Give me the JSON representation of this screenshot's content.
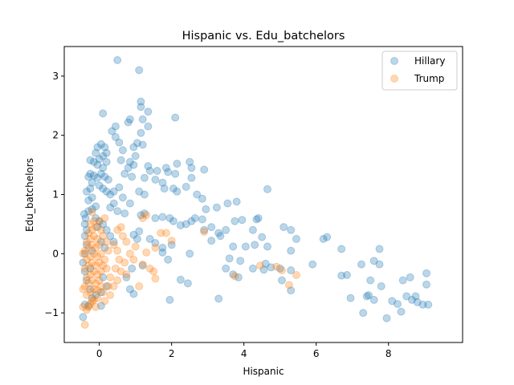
{
  "chart_data": {
    "type": "scatter",
    "title": "Hispanic vs. Edu_batchelors",
    "xlabel": "Hispanic",
    "ylabel": "Edu_batchelors",
    "xlim": [
      -0.97,
      10.05
    ],
    "ylim": [
      -1.5,
      3.5
    ],
    "xticks": [
      0,
      2,
      4,
      6,
      8
    ],
    "yticks": [
      -1,
      0,
      1,
      2,
      3
    ],
    "grid": false,
    "legend_position": "top-right",
    "series": [
      {
        "name": "Hillary",
        "color": "#1f77b4",
        "points": [
          [
            -0.45,
            -1.07
          ],
          [
            -0.4,
            -0.86
          ],
          [
            -0.3,
            -0.88
          ],
          [
            -0.2,
            -0.75
          ],
          [
            -0.1,
            -0.7
          ],
          [
            0.05,
            -0.88
          ],
          [
            -0.25,
            -0.6
          ],
          [
            -0.35,
            -0.45
          ],
          [
            -0.4,
            -0.3
          ],
          [
            -0.45,
            -0.15
          ],
          [
            -0.4,
            0.0
          ],
          [
            -0.35,
            0.15
          ],
          [
            -0.4,
            0.3
          ],
          [
            -0.35,
            0.4
          ],
          [
            -0.4,
            0.5
          ],
          [
            -0.38,
            0.6
          ],
          [
            -0.42,
            0.67
          ],
          [
            -0.3,
            0.72
          ],
          [
            -0.2,
            0.75
          ],
          [
            -0.1,
            0.8
          ],
          [
            -0.3,
            0.9
          ],
          [
            -0.2,
            0.95
          ],
          [
            -0.35,
            1.05
          ],
          [
            -0.25,
            1.1
          ],
          [
            -0.2,
            1.2
          ],
          [
            -0.3,
            1.3
          ],
          [
            -0.25,
            1.35
          ],
          [
            -0.15,
            1.32
          ],
          [
            -0.05,
            1.28
          ],
          [
            -0.25,
            1.58
          ],
          [
            -0.15,
            1.55
          ],
          [
            -0.1,
            1.7
          ],
          [
            -0.05,
            1.8
          ],
          [
            0.05,
            1.85
          ],
          [
            0.15,
            1.8
          ],
          [
            0.2,
            1.7
          ],
          [
            0.1,
            1.65
          ],
          [
            0.0,
            1.6
          ],
          [
            -0.05,
            1.5
          ],
          [
            0.1,
            1.45
          ],
          [
            0.2,
            1.55
          ],
          [
            0.05,
            1.35
          ],
          [
            0.15,
            1.3
          ],
          [
            0.25,
            1.25
          ],
          [
            0.0,
            1.15
          ],
          [
            0.1,
            1.1
          ],
          [
            0.2,
            1.05
          ],
          [
            0.3,
            1.0
          ],
          [
            -0.1,
            0.6
          ],
          [
            0.0,
            0.55
          ],
          [
            0.1,
            0.5
          ],
          [
            0.2,
            0.4
          ],
          [
            0.3,
            0.3
          ],
          [
            0.4,
            0.2
          ],
          [
            -0.05,
            0.45
          ],
          [
            0.05,
            0.2
          ],
          [
            0.15,
            0.1
          ],
          [
            -0.2,
            0.05
          ],
          [
            -0.25,
            -0.25
          ],
          [
            0.1,
            -0.4
          ],
          [
            0.2,
            -0.55
          ],
          [
            0.05,
            -0.65
          ],
          [
            0.1,
            2.37
          ],
          [
            0.5,
            3.27
          ],
          [
            1.1,
            3.1
          ],
          [
            1.15,
            2.57
          ],
          [
            1.15,
            2.48
          ],
          [
            1.35,
            2.4
          ],
          [
            1.2,
            2.27
          ],
          [
            0.85,
            2.27
          ],
          [
            0.8,
            2.22
          ],
          [
            1.35,
            2.15
          ],
          [
            1.15,
            2.04
          ],
          [
            0.45,
            2.15
          ],
          [
            0.35,
            2.07
          ],
          [
            0.45,
            1.97
          ],
          [
            0.55,
            1.88
          ],
          [
            1.05,
            1.87
          ],
          [
            1.2,
            1.84
          ],
          [
            0.95,
            1.8
          ],
          [
            0.65,
            1.75
          ],
          [
            1.0,
            1.65
          ],
          [
            0.6,
            1.58
          ],
          [
            0.85,
            1.55
          ],
          [
            0.95,
            1.5
          ],
          [
            0.8,
            1.45
          ],
          [
            0.7,
            1.35
          ],
          [
            0.9,
            1.3
          ],
          [
            1.35,
            1.48
          ],
          [
            1.4,
            1.4
          ],
          [
            1.6,
            1.4
          ],
          [
            1.85,
            1.45
          ],
          [
            1.9,
            1.38
          ],
          [
            2.1,
            1.35
          ],
          [
            2.15,
            1.52
          ],
          [
            2.5,
            1.55
          ],
          [
            2.55,
            1.45
          ],
          [
            2.9,
            1.42
          ],
          [
            2.1,
            2.3
          ],
          [
            1.25,
            1.28
          ],
          [
            1.55,
            1.25
          ],
          [
            1.75,
            1.2
          ],
          [
            1.8,
            1.1
          ],
          [
            2.05,
            1.1
          ],
          [
            2.15,
            1.05
          ],
          [
            2.55,
            1.28
          ],
          [
            2.4,
            1.13
          ],
          [
            2.7,
            1.0
          ],
          [
            2.85,
            0.93
          ],
          [
            2.95,
            0.75
          ],
          [
            3.25,
            0.78
          ],
          [
            3.55,
            0.85
          ],
          [
            3.8,
            0.88
          ],
          [
            4.65,
            1.09
          ],
          [
            1.1,
            1.05
          ],
          [
            1.25,
            1.0
          ],
          [
            0.55,
            1.12
          ],
          [
            0.4,
            1.05
          ],
          [
            0.65,
            0.95
          ],
          [
            0.85,
            0.85
          ],
          [
            0.4,
            0.85
          ],
          [
            0.3,
            0.78
          ],
          [
            0.5,
            0.72
          ],
          [
            0.7,
            0.68
          ],
          [
            1.15,
            0.65
          ],
          [
            1.25,
            0.68
          ],
          [
            1.55,
            0.6
          ],
          [
            1.75,
            0.62
          ],
          [
            1.95,
            0.6
          ],
          [
            2.05,
            0.55
          ],
          [
            2.25,
            0.48
          ],
          [
            2.4,
            0.5
          ],
          [
            2.55,
            0.55
          ],
          [
            2.65,
            0.6
          ],
          [
            2.85,
            0.58
          ],
          [
            2.9,
            0.4
          ],
          [
            3.1,
            0.45
          ],
          [
            3.3,
            0.35
          ],
          [
            3.5,
            0.4
          ],
          [
            3.75,
            0.55
          ],
          [
            3.95,
            0.57
          ],
          [
            4.35,
            0.58
          ],
          [
            4.4,
            0.6
          ],
          [
            4.25,
            0.4
          ],
          [
            4.5,
            0.28
          ],
          [
            5.1,
            0.45
          ],
          [
            5.3,
            0.4
          ],
          [
            5.45,
            0.25
          ],
          [
            6.2,
            0.25
          ],
          [
            6.3,
            0.28
          ],
          [
            4.05,
            0.12
          ],
          [
            4.3,
            0.15
          ],
          [
            4.65,
            0.12
          ],
          [
            5.3,
            0.05
          ],
          [
            3.1,
            0.22
          ],
          [
            3.35,
            0.3
          ],
          [
            3.7,
            0.12
          ],
          [
            3.6,
            -0.08
          ],
          [
            3.9,
            -0.12
          ],
          [
            4.6,
            -0.17
          ],
          [
            4.55,
            -0.27
          ],
          [
            4.25,
            -0.25
          ],
          [
            4.75,
            -0.23
          ],
          [
            5.0,
            -0.25
          ],
          [
            5.3,
            -0.28
          ],
          [
            5.9,
            -0.18
          ],
          [
            3.5,
            -0.25
          ],
          [
            3.7,
            -0.35
          ],
          [
            3.85,
            -0.4
          ],
          [
            1.1,
            0.38
          ],
          [
            0.95,
            0.32
          ],
          [
            1.05,
            0.25
          ],
          [
            1.4,
            0.25
          ],
          [
            1.55,
            0.18
          ],
          [
            1.75,
            0.1
          ],
          [
            2.0,
            0.15
          ],
          [
            2.5,
            0.0
          ],
          [
            1.75,
            0.02
          ],
          [
            1.9,
            -0.1
          ],
          [
            1.2,
            -0.2
          ],
          [
            0.9,
            -0.25
          ],
          [
            0.75,
            -0.4
          ],
          [
            0.85,
            -0.6
          ],
          [
            0.95,
            -0.68
          ],
          [
            2.25,
            -0.44
          ],
          [
            2.45,
            -0.5
          ],
          [
            1.95,
            -0.78
          ],
          [
            3.3,
            -0.76
          ],
          [
            5.05,
            -0.45
          ],
          [
            5.3,
            -0.62
          ],
          [
            6.7,
            0.08
          ],
          [
            6.7,
            -0.37
          ],
          [
            6.85,
            -0.36
          ],
          [
            6.95,
            -0.75
          ],
          [
            7.25,
            -0.18
          ],
          [
            7.4,
            -0.72
          ],
          [
            7.45,
            -0.7
          ],
          [
            7.5,
            -0.45
          ],
          [
            7.6,
            -0.78
          ],
          [
            7.6,
            -0.12
          ],
          [
            7.75,
            -0.18
          ],
          [
            7.75,
            0.08
          ],
          [
            7.8,
            -0.55
          ],
          [
            7.95,
            -1.09
          ],
          [
            8.1,
            -0.8
          ],
          [
            8.25,
            -0.85
          ],
          [
            8.35,
            -0.98
          ],
          [
            8.4,
            -0.45
          ],
          [
            8.5,
            -0.72
          ],
          [
            8.6,
            -0.4
          ],
          [
            8.75,
            -0.72
          ],
          [
            8.8,
            -0.82
          ],
          [
            8.95,
            -0.86
          ],
          [
            9.05,
            -0.33
          ],
          [
            9.1,
            -0.86
          ],
          [
            7.3,
            -1.0
          ],
          [
            9.05,
            -0.52
          ],
          [
            8.65,
            -0.78
          ]
        ]
      },
      {
        "name": "Trump",
        "color": "#ff7f0e",
        "points": [
          [
            -0.4,
            -1.2
          ],
          [
            -0.35,
            -0.95
          ],
          [
            -0.3,
            -0.9
          ],
          [
            -0.25,
            -0.85
          ],
          [
            -0.2,
            -0.8
          ],
          [
            -0.15,
            -0.78
          ],
          [
            -0.35,
            -0.7
          ],
          [
            -0.25,
            -0.65
          ],
          [
            -0.15,
            -0.6
          ],
          [
            -0.05,
            -0.62
          ],
          [
            -0.4,
            -0.55
          ],
          [
            -0.3,
            -0.5
          ],
          [
            -0.2,
            -0.45
          ],
          [
            -0.1,
            -0.5
          ],
          [
            0.0,
            -0.45
          ],
          [
            -0.35,
            -0.4
          ],
          [
            -0.25,
            -0.35
          ],
          [
            -0.15,
            -0.3
          ],
          [
            -0.05,
            -0.35
          ],
          [
            0.05,
            -0.3
          ],
          [
            -0.4,
            -0.25
          ],
          [
            -0.3,
            -0.2
          ],
          [
            -0.2,
            -0.15
          ],
          [
            -0.1,
            -0.2
          ],
          [
            0.0,
            -0.15
          ],
          [
            -0.35,
            -0.1
          ],
          [
            -0.25,
            -0.05
          ],
          [
            -0.15,
            0.0
          ],
          [
            -0.05,
            -0.05
          ],
          [
            0.05,
            0.0
          ],
          [
            -0.4,
            0.05
          ],
          [
            -0.3,
            0.1
          ],
          [
            -0.2,
            0.15
          ],
          [
            -0.1,
            0.1
          ],
          [
            0.0,
            0.15
          ],
          [
            -0.35,
            0.2
          ],
          [
            -0.25,
            0.25
          ],
          [
            -0.15,
            0.3
          ],
          [
            -0.05,
            0.25
          ],
          [
            -0.3,
            0.35
          ],
          [
            -0.2,
            0.4
          ],
          [
            -0.1,
            0.45
          ],
          [
            -0.25,
            0.5
          ],
          [
            -0.15,
            0.55
          ],
          [
            -0.2,
            0.7
          ],
          [
            0.1,
            0.3
          ],
          [
            0.2,
            0.2
          ],
          [
            0.25,
            0.05
          ],
          [
            0.15,
            -0.1
          ],
          [
            0.2,
            -0.25
          ],
          [
            0.3,
            -0.4
          ],
          [
            0.25,
            -0.55
          ],
          [
            0.1,
            -0.65
          ],
          [
            0.3,
            -0.7
          ],
          [
            0.4,
            0.15
          ],
          [
            0.5,
            0.05
          ],
          [
            0.55,
            -0.1
          ],
          [
            0.45,
            -0.25
          ],
          [
            0.6,
            -0.3
          ],
          [
            0.5,
            -0.45
          ],
          [
            0.4,
            -0.55
          ],
          [
            0.7,
            -0.15
          ],
          [
            0.75,
            -0.35
          ],
          [
            0.85,
            0.0
          ],
          [
            0.65,
            0.3
          ],
          [
            0.5,
            0.4
          ],
          [
            0.75,
            0.2
          ],
          [
            0.6,
            0.45
          ],
          [
            1.0,
            0.12
          ],
          [
            0.95,
            -0.1
          ],
          [
            1.1,
            -0.55
          ],
          [
            1.3,
            0.65
          ],
          [
            1.2,
            0.6
          ],
          [
            1.2,
            -0.18
          ],
          [
            1.4,
            -0.25
          ],
          [
            1.5,
            -0.3
          ],
          [
            1.55,
            -0.42
          ],
          [
            1.7,
            0.35
          ],
          [
            1.85,
            0.35
          ],
          [
            1.55,
            0.1
          ],
          [
            1.3,
            0.02
          ],
          [
            2.0,
            0.22
          ],
          [
            2.9,
            0.37
          ],
          [
            3.75,
            -0.38
          ],
          [
            4.45,
            -0.2
          ],
          [
            4.9,
            -0.22
          ],
          [
            5.05,
            -0.28
          ],
          [
            5.25,
            -0.53
          ],
          [
            5.45,
            -0.36
          ],
          [
            -0.45,
            -0.9
          ],
          [
            -0.1,
            -0.9
          ],
          [
            0.15,
            -0.8
          ],
          [
            -0.05,
            -0.75
          ],
          [
            0.05,
            -0.55
          ],
          [
            0.1,
            -0.2
          ],
          [
            0.05,
            0.4
          ],
          [
            0.0,
            0.55
          ],
          [
            0.15,
            0.6
          ],
          [
            -0.45,
            0.0
          ],
          [
            -0.45,
            -0.6
          ]
        ]
      }
    ]
  }
}
